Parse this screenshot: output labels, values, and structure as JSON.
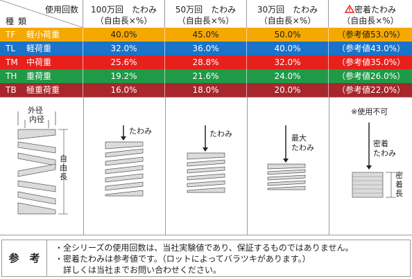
{
  "header": {
    "use_count_label": "使用回数",
    "kind_label": "種類",
    "columns": [
      {
        "line1": "100万回　たわみ",
        "line2": "（自由長×%）"
      },
      {
        "line1": "50万回　たわみ",
        "line2": "（自由長×%）"
      },
      {
        "line1": "30万回　たわみ",
        "line2": "（自由長×%）"
      },
      {
        "line1": "密着たわみ",
        "line2": "（自由長×%）",
        "warning_icon": "warning-triangle-icon"
      }
    ]
  },
  "rows": [
    {
      "code": "TF",
      "name": "軽小荷重",
      "color": "#f5a800",
      "v100": "40.0%",
      "v50": "45.0%",
      "v30": "50.0%",
      "ref_label": "（参考値",
      "ref_value": "53.0%）"
    },
    {
      "code": "TL",
      "name": "軽荷重",
      "color": "#1a73c8",
      "v100": "32.0%",
      "v50": "36.0%",
      "v30": "40.0%",
      "ref_label": "（参考値",
      "ref_value": "43.0%）"
    },
    {
      "code": "TM",
      "name": "中荷重",
      "color": "#e8201c",
      "v100": "25.6%",
      "v50": "28.8%",
      "v30": "32.0%",
      "ref_label": "（参考値",
      "ref_value": "35.0%）"
    },
    {
      "code": "TH",
      "name": "重荷重",
      "color": "#1f9a47",
      "v100": "19.2%",
      "v50": "21.6%",
      "v30": "24.0%",
      "ref_label": "（参考値",
      "ref_value": "26.0%）"
    },
    {
      "code": "TB",
      "name": "極重荷重",
      "color": "#a8262c",
      "v100": "16.0%",
      "v50": "18.0%",
      "v30": "20.0%",
      "ref_label": "（参考値",
      "ref_value": "22.0%）"
    }
  ],
  "figure": {
    "outer_diameter": "外径",
    "inner_diameter": "内径",
    "free_length": "自由長",
    "deflection": "たわみ",
    "max_deflection_1": "最大",
    "max_deflection_2": "たわみ",
    "not_usable": "※使用不可",
    "solid_deflection_1": "密着",
    "solid_deflection_2": "たわみ",
    "solid_length": "密着長"
  },
  "note": {
    "label": "参　考",
    "line1": "・全シリーズの使用回数は、当社実験値であり、保証するものではありません。",
    "line2": "・密着たわみは参考値です。（ロットによってバラツキがあります。）",
    "line3": "　詳しくは当社までお問い合わせください。"
  }
}
